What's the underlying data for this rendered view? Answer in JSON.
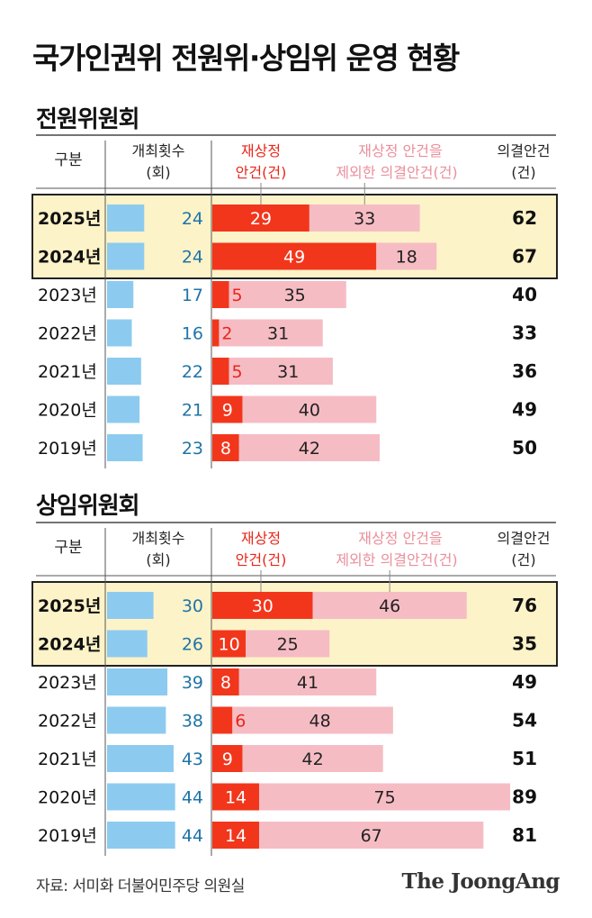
{
  "title": "국가인권위 전원위·상임위 운영 현황",
  "source": "자료: 서미화 더불어민주당 의원실",
  "brand": "The JoongAng",
  "headers": {
    "category": "구분",
    "meetings": [
      "개최횟수",
      "(회)"
    ],
    "reconsider": [
      "재상정",
      "안건(건)"
    ],
    "excluding": [
      "재상정 안건을",
      "제외한 의결안건(건)"
    ],
    "decided": [
      "의결안건",
      "(건)"
    ]
  },
  "colors": {
    "meetings_bar": "#8ccbef",
    "meetings_text": "#1f74a8",
    "reconsider_bar": "#f2361c",
    "excluding_bar": "#f6bcc4",
    "highlight_fill": "#fdf3c8",
    "highlight_border": "#222222",
    "reconsider_header": "#e8261a",
    "excluding_header": "#ea8f9b"
  },
  "chart_data": [
    {
      "type": "bar",
      "title": "전원위원회",
      "categories": [
        "2025년",
        "2024년",
        "2023년",
        "2022년",
        "2021년",
        "2020년",
        "2019년"
      ],
      "highlighted": [
        "2025년",
        "2024년"
      ],
      "series": [
        {
          "name": "개최횟수(회)",
          "values": [
            24,
            24,
            17,
            16,
            22,
            21,
            23
          ]
        },
        {
          "name": "재상정 안건(건)",
          "values": [
            29,
            49,
            5,
            2,
            5,
            9,
            8
          ]
        },
        {
          "name": "재상정 안건을 제외한 의결안건(건)",
          "values": [
            33,
            18,
            35,
            31,
            31,
            40,
            42
          ]
        },
        {
          "name": "의결안건(건)",
          "values": [
            62,
            67,
            40,
            33,
            36,
            49,
            50
          ]
        }
      ]
    },
    {
      "type": "bar",
      "title": "상임위원회",
      "categories": [
        "2025년",
        "2024년",
        "2023년",
        "2022년",
        "2021년",
        "2020년",
        "2019년"
      ],
      "highlighted": [
        "2025년",
        "2024년"
      ],
      "series": [
        {
          "name": "개최횟수(회)",
          "values": [
            30,
            26,
            39,
            38,
            43,
            44,
            44
          ]
        },
        {
          "name": "재상정 안건(건)",
          "values": [
            30,
            10,
            8,
            6,
            9,
            14,
            14
          ]
        },
        {
          "name": "재상정 안건을 제외한 의결안건(건)",
          "values": [
            46,
            25,
            41,
            48,
            42,
            75,
            67
          ]
        },
        {
          "name": "의결안건(건)",
          "values": [
            76,
            35,
            49,
            54,
            51,
            89,
            81
          ]
        }
      ]
    }
  ]
}
